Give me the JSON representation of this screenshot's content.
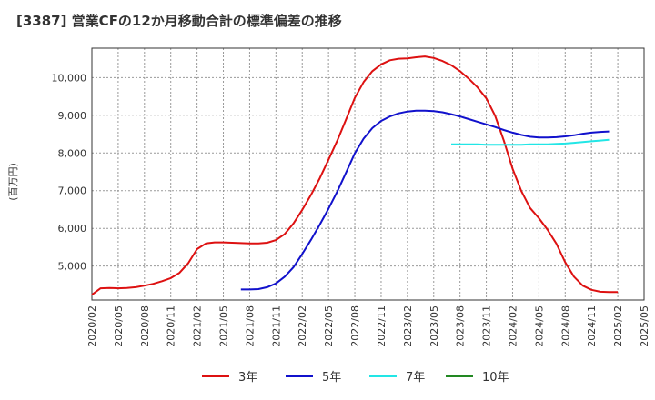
{
  "chart_data": {
    "type": "line",
    "title": "[3387]  営業CFの12か月移動合計の標準偏差の推移",
    "ylabel": "(百万円)",
    "xlabel": "",
    "ylim": [
      4100,
      10780
    ],
    "yticks": [
      5000,
      6000,
      7000,
      8000,
      9000,
      10000
    ],
    "ytick_labels": [
      "5,000",
      "6,000",
      "7,000",
      "8,000",
      "9,000",
      "10,000"
    ],
    "xtick_labels": [
      "2020/02",
      "2020/05",
      "2020/08",
      "2020/11",
      "2021/02",
      "2021/05",
      "2021/08",
      "2021/11",
      "2022/02",
      "2022/05",
      "2022/08",
      "2022/11",
      "2023/02",
      "2023/05",
      "2023/08",
      "2023/11",
      "2024/02",
      "2024/05",
      "2024/08",
      "2024/11",
      "2025/02",
      "2025/05"
    ],
    "x_start": "2020/02",
    "grid": true,
    "legend_position": "bottom",
    "series": [
      {
        "name": "3年",
        "color": "#dd1111",
        "start": "2020/02",
        "values": [
          4240,
          4410,
          4420,
          4410,
          4420,
          4440,
          4480,
          4530,
          4600,
          4680,
          4820,
          5080,
          5450,
          5600,
          5630,
          5630,
          5620,
          5610,
          5600,
          5600,
          5620,
          5690,
          5850,
          6130,
          6490,
          6890,
          7330,
          7820,
          8330,
          8890,
          9460,
          9880,
          10170,
          10350,
          10460,
          10500,
          10510,
          10540,
          10560,
          10520,
          10440,
          10330,
          10170,
          9970,
          9740,
          9450,
          8990,
          8330,
          7580,
          6990,
          6540,
          6270,
          5960,
          5590,
          5100,
          4720,
          4480,
          4370,
          4320,
          4310,
          4310
        ]
      },
      {
        "name": "5年",
        "color": "#1111cc",
        "start": "2021/07",
        "values": [
          4380,
          4380,
          4390,
          4440,
          4540,
          4720,
          4970,
          5320,
          5700,
          6100,
          6520,
          6980,
          7480,
          7990,
          8380,
          8660,
          8850,
          8970,
          9050,
          9100,
          9120,
          9120,
          9110,
          9080,
          9030,
          8970,
          8900,
          8830,
          8760,
          8690,
          8610,
          8540,
          8480,
          8430,
          8410,
          8410,
          8420,
          8440,
          8470,
          8510,
          8540,
          8560,
          8570
        ]
      },
      {
        "name": "7年",
        "color": "#22e6e6",
        "start": "2023/07",
        "values": [
          8230,
          8230,
          8230,
          8230,
          8220,
          8220,
          8220,
          8220,
          8220,
          8230,
          8230,
          8230,
          8240,
          8250,
          8270,
          8290,
          8310,
          8330,
          8350
        ]
      },
      {
        "name": "10年",
        "color": "#228822",
        "start": "",
        "values": []
      }
    ]
  }
}
